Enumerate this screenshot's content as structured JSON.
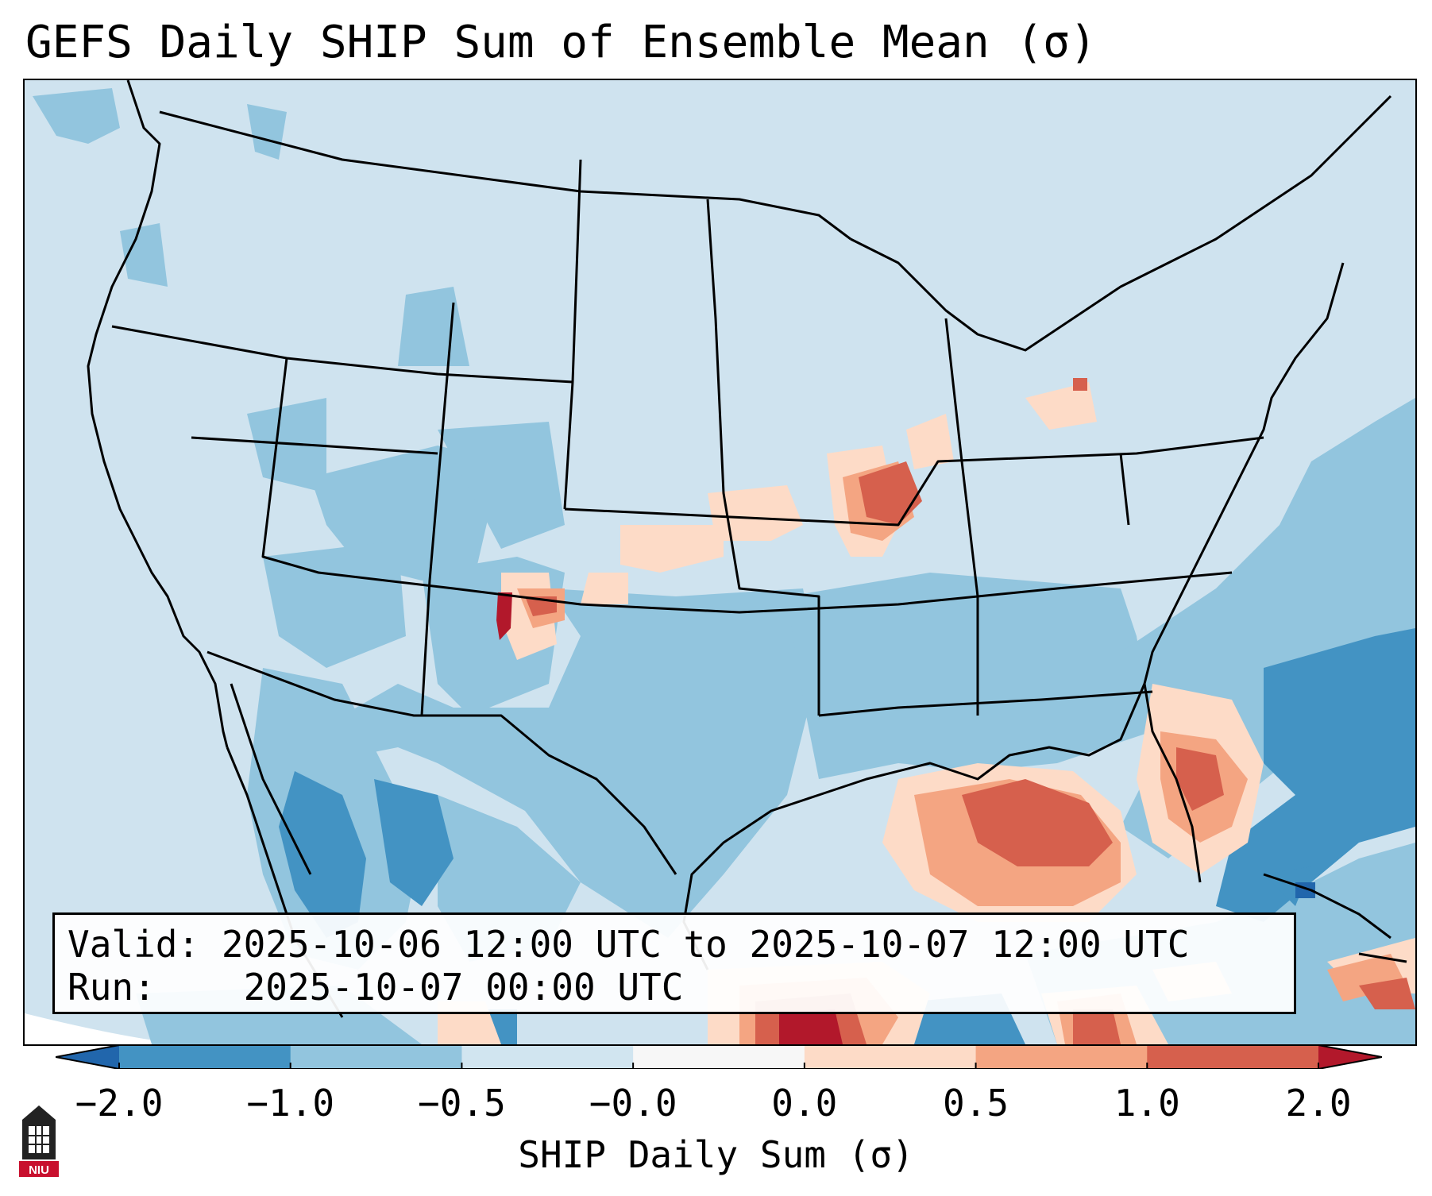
{
  "title": "GEFS Daily SHIP Sum of Ensemble Mean (σ)",
  "info": {
    "valid_label": "Valid:",
    "valid_value": "2025-10-06 12:00 UTC to 2025-10-07 12:00 UTC",
    "run_label": "Run:",
    "run_value": "2025-10-07 00:00 UTC"
  },
  "colorbar": {
    "label": "SHIP Daily Sum (σ)",
    "ticks": [
      "−2.0",
      "−1.0",
      "−0.5",
      "−0.0",
      "0.0",
      "0.5",
      "1.0",
      "2.0"
    ],
    "colors": [
      "#4393c3",
      "#92c5de",
      "#d1e5f0",
      "#f7f7f7",
      "#fddbc7",
      "#f4a582",
      "#d6604d"
    ],
    "extend_low": "#2166ac",
    "extend_high": "#b2182b"
  },
  "map": {
    "background_color": "#cfe3ef",
    "border_color": "#000000"
  },
  "logo": {
    "text": "NIU"
  }
}
